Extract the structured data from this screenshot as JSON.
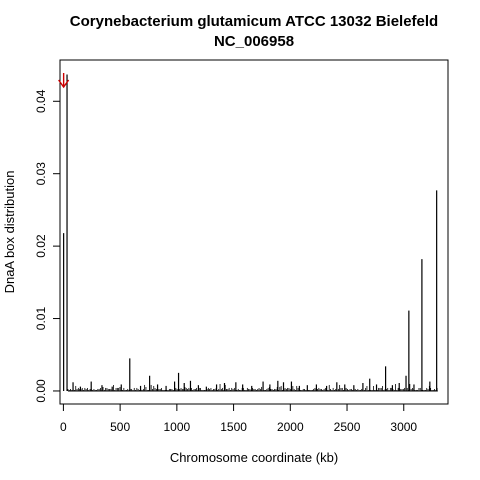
{
  "chart_data": {
    "type": "bar",
    "title": "Corynebacterium glutamicum ATCC 13032 Bielefeld",
    "subtitle": "NC_006958",
    "xlabel": "Chromosome coordinate (kb)",
    "ylabel": "DnaA box distribution",
    "xlim": [
      -30,
      3390
    ],
    "ylim": [
      -0.0018,
      0.0457
    ],
    "x_ticks": [
      0,
      500,
      1000,
      1500,
      2000,
      2500,
      3000
    ],
    "y_ticks": [
      0.0,
      0.01,
      0.02,
      0.03,
      0.04
    ],
    "y_tick_labels": [
      "0.00",
      "0.01",
      "0.02",
      "0.03",
      "0.04"
    ],
    "grid": false,
    "bar_color": "#000000",
    "x": [
      2,
      32,
      85,
      150,
      245,
      340,
      430,
      510,
      585,
      680,
      760,
      830,
      905,
      980,
      1015,
      1065,
      1120,
      1190,
      1260,
      1350,
      1420,
      1520,
      1580,
      1660,
      1760,
      1820,
      1890,
      1940,
      2010,
      2080,
      2150,
      2230,
      2320,
      2410,
      2480,
      2560,
      2640,
      2700,
      2760,
      2840,
      2900,
      2960,
      3020,
      3045,
      3090,
      3160,
      3230,
      3290
    ],
    "values": [
      0.0218,
      0.0437,
      0.0012,
      0.0006,
      0.0013,
      0.0008,
      0.0006,
      0.0009,
      0.0045,
      0.0007,
      0.0021,
      0.0009,
      0.0007,
      0.0013,
      0.0025,
      0.0011,
      0.0014,
      0.0008,
      0.0006,
      0.0009,
      0.0011,
      0.0012,
      0.0009,
      0.0007,
      0.0013,
      0.0009,
      0.0014,
      0.0012,
      0.0013,
      0.0007,
      0.0008,
      0.0009,
      0.0007,
      0.0012,
      0.0009,
      0.0008,
      0.0011,
      0.0017,
      0.0009,
      0.0034,
      0.0008,
      0.0011,
      0.0021,
      0.0111,
      0.0009,
      0.0182,
      0.0013,
      0.0277
    ],
    "annotation": {
      "type": "arrow",
      "x": 2,
      "color": "#cc0000"
    }
  }
}
